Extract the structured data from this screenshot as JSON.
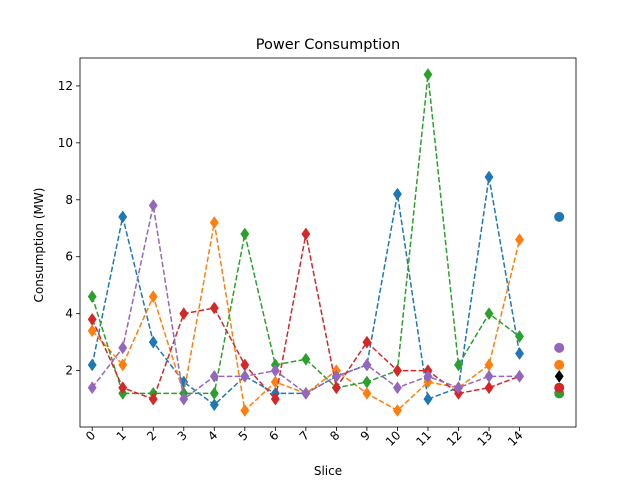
{
  "chart_data": {
    "type": "line",
    "title": "Power Consumption",
    "xlabel": "Slice",
    "ylabel": "Consumption (MW)",
    "x": [
      0,
      1,
      2,
      3,
      4,
      5,
      6,
      7,
      8,
      9,
      10,
      11,
      12,
      13,
      14
    ],
    "xtick_labels": [
      "0",
      "1",
      "2",
      "3",
      "4",
      "5",
      "6",
      "7",
      "8",
      "9",
      "10",
      "11",
      "12",
      "13",
      "14"
    ],
    "yticks": [
      2,
      4,
      6,
      8,
      10,
      12
    ],
    "xlim": [
      -0.4,
      15.85
    ],
    "ylim": [
      0.02,
      12.98
    ],
    "grid": false,
    "series": [
      {
        "color": "#1f77b4",
        "values": [
          2.2,
          7.4,
          3.0,
          1.6,
          0.8,
          1.8,
          1.2,
          1.2,
          1.8,
          2.2,
          8.2,
          1.0,
          1.4,
          8.8,
          2.6
        ],
        "end_marker": 7.4
      },
      {
        "color": "#ff7f0e",
        "values": [
          3.4,
          2.2,
          4.6,
          1.2,
          7.2,
          0.6,
          1.6,
          1.2,
          2.0,
          1.2,
          0.6,
          1.6,
          1.4,
          2.2,
          6.6
        ],
        "end_marker": 2.2
      },
      {
        "color": "#2ca02c",
        "values": [
          4.6,
          1.2,
          1.2,
          1.2,
          1.2,
          6.8,
          2.2,
          2.4,
          1.4,
          1.6,
          2.0,
          12.4,
          2.2,
          4.0,
          3.2
        ],
        "end_marker": 1.2
      },
      {
        "color": "#d62728",
        "values": [
          3.8,
          1.4,
          1.0,
          4.0,
          4.2,
          2.2,
          1.0,
          6.8,
          1.4,
          3.0,
          2.0,
          2.0,
          1.2,
          1.4,
          1.8
        ],
        "end_marker": 1.4
      },
      {
        "color": "#9467bd",
        "values": [
          1.4,
          2.8,
          7.8,
          1.0,
          1.8,
          1.8,
          2.0,
          1.2,
          1.8,
          2.2,
          1.4,
          1.8,
          1.4,
          1.8,
          1.8
        ],
        "end_marker": 2.8
      }
    ],
    "extra_marker": {
      "color": "#000000",
      "value": 1.8
    }
  }
}
